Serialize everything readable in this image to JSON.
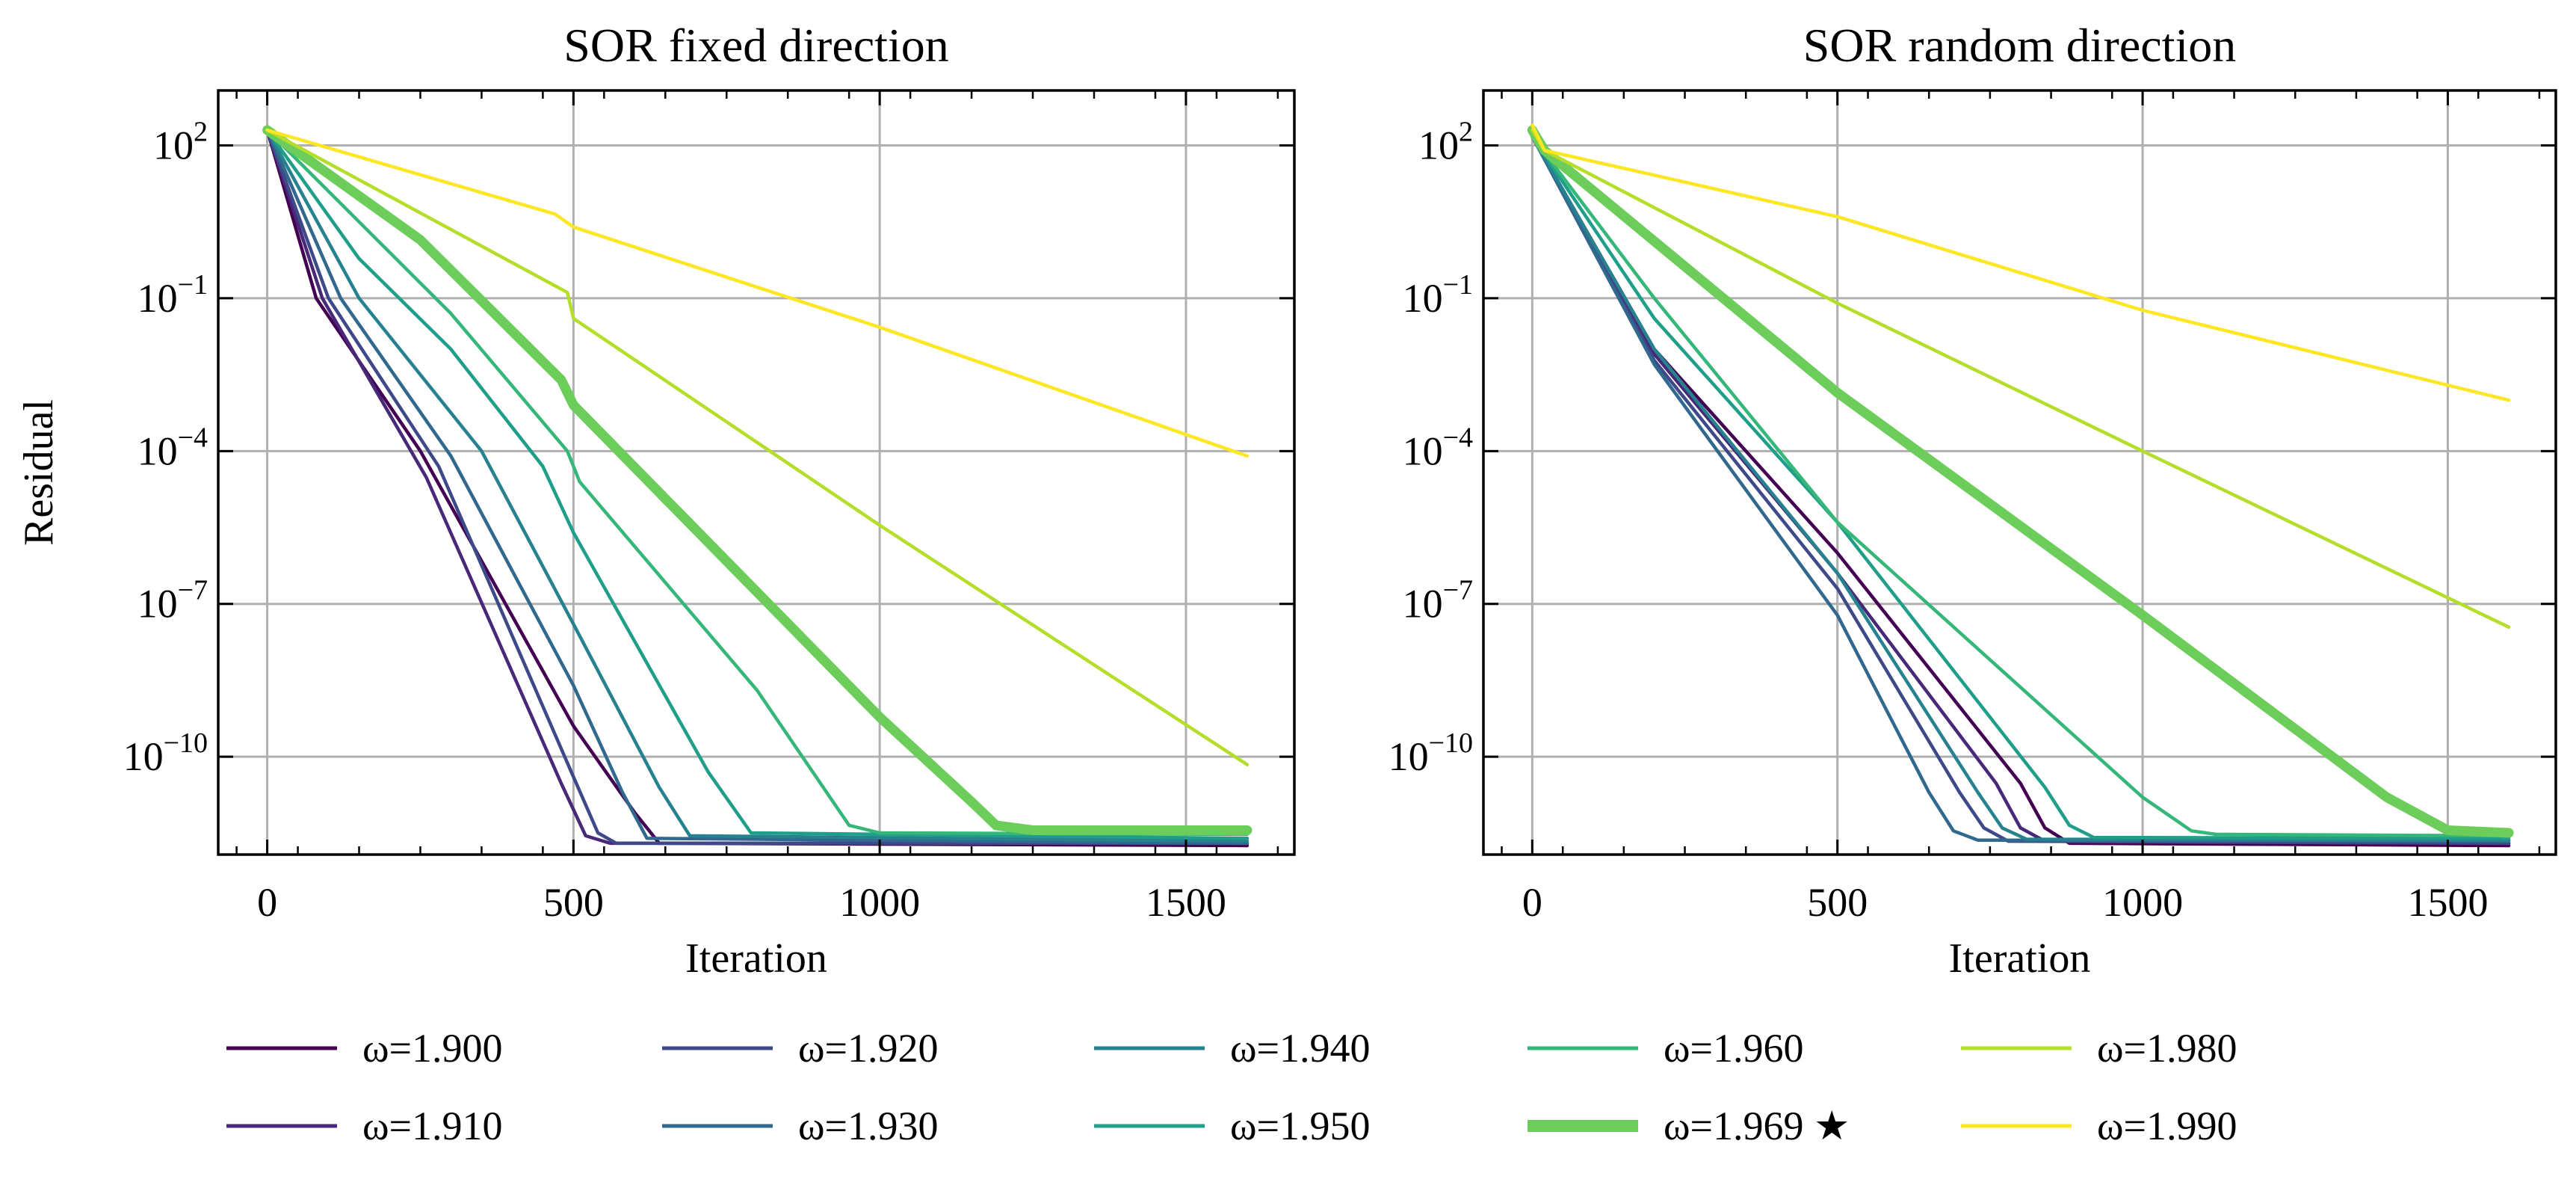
{
  "chart_data": [
    {
      "type": "line",
      "title": "SOR fixed direction",
      "xlabel": "Iteration",
      "ylabel": "Residual",
      "yscale": "log",
      "xlim": [
        -80,
        1677
      ],
      "ylim": [
        1.2e-12,
        1200.0
      ],
      "grid": true,
      "xticks": [
        0,
        500,
        1000,
        1500
      ],
      "xtick_labels": [
        "0",
        "500",
        "1000",
        "1500"
      ],
      "yticks": [
        100.0,
        0.1,
        0.0001,
        1e-07,
        1e-10
      ],
      "ytick_labels": [
        {
          "base": "10",
          "exp": "2"
        },
        {
          "base": "10",
          "exp": "−1"
        },
        {
          "base": "10",
          "exp": "−4"
        },
        {
          "base": "10",
          "exp": "−7"
        },
        {
          "base": "10",
          "exp": "−10"
        }
      ],
      "series": [
        {
          "name": "ω=1.900",
          "x": [
            0,
            80,
            250,
            500,
            600,
            640,
            1600
          ],
          "y": [
            200,
            0.1,
            0.0001,
            4e-10,
            8e-12,
            2e-12,
            1.8e-12
          ]
        },
        {
          "name": "ω=1.910",
          "x": [
            0,
            90,
            260,
            480,
            520,
            560,
            1600
          ],
          "y": [
            200,
            0.1,
            3e-05,
            3e-11,
            2.8e-12,
            2e-12,
            2e-12
          ]
        },
        {
          "name": "ω=1.920",
          "x": [
            0,
            100,
            280,
            500,
            540,
            570,
            1600
          ],
          "y": [
            200,
            0.1,
            5e-05,
            4e-11,
            3.2e-12,
            2e-12,
            2e-12
          ]
        },
        {
          "name": "ω=1.930",
          "x": [
            0,
            120,
            300,
            500,
            580,
            620,
            1600
          ],
          "y": [
            200,
            0.1,
            8e-05,
            2.5e-09,
            2e-11,
            2.5e-12,
            2e-12
          ]
        },
        {
          "name": "ω=1.940",
          "x": [
            0,
            150,
            350,
            500,
            640,
            690,
            1600
          ],
          "y": [
            200,
            0.1,
            0.0001,
            4e-08,
            2.5e-11,
            2.8e-12,
            2.2e-12
          ]
        },
        {
          "name": "ω=1.950",
          "x": [
            0,
            150,
            300,
            450,
            500,
            720,
            790,
            1600
          ],
          "y": [
            200,
            0.6,
            0.01,
            5e-05,
            2.5e-06,
            5e-11,
            3.2e-12,
            2.5e-12
          ]
        },
        {
          "name": "ω=1.960",
          "x": [
            0,
            300,
            490,
            510,
            800,
            950,
            1000,
            1600
          ],
          "y": [
            200,
            0.05,
            0.0001,
            2.5e-05,
            2e-09,
            4.5e-12,
            3.2e-12,
            3e-12
          ]
        },
        {
          "name": "ω=1.969 ★",
          "x": [
            0,
            250,
            480,
            500,
            1000,
            1150,
            1190,
            1250,
            1600
          ],
          "y": [
            200,
            1.4,
            0.0025,
            0.0008,
            6e-10,
            1.3e-11,
            4.5e-12,
            3.6e-12,
            3.6e-12
          ]
        },
        {
          "name": "ω=1.980",
          "x": [
            0,
            490,
            500,
            1000,
            1600
          ],
          "y": [
            200,
            0.13,
            0.04,
            3.5e-06,
            7e-11
          ]
        },
        {
          "name": "ω=1.990",
          "x": [
            0,
            470,
            500,
            1000,
            1600
          ],
          "y": [
            200,
            4.5,
            2.5,
            0.027,
            8e-05
          ]
        }
      ]
    },
    {
      "type": "line",
      "title": "SOR random direction",
      "xlabel": "Iteration",
      "yscale": "log",
      "xlim": [
        -80,
        1677
      ],
      "ylim": [
        1.2e-12,
        1200.0
      ],
      "grid": true,
      "xticks": [
        0,
        500,
        1000,
        1500
      ],
      "xtick_labels": [
        "0",
        "500",
        "1000",
        "1500"
      ],
      "yticks": [
        100.0,
        0.1,
        0.0001,
        1e-07,
        1e-10
      ],
      "ytick_labels": [
        {
          "base": "10",
          "exp": "2"
        },
        {
          "base": "10",
          "exp": "−1"
        },
        {
          "base": "10",
          "exp": "−4"
        },
        {
          "base": "10",
          "exp": "−7"
        },
        {
          "base": "10",
          "exp": "−10"
        }
      ],
      "series": [
        {
          "name": "ω=1.900",
          "x": [
            0,
            200,
            500,
            800,
            840,
            880,
            1600
          ],
          "y": [
            150,
            0.01,
            1e-06,
            3e-11,
            4e-12,
            2e-12,
            1.8e-12
          ]
        },
        {
          "name": "ω=1.910",
          "x": [
            0,
            200,
            500,
            760,
            800,
            840,
            1600
          ],
          "y": [
            150,
            0.008,
            4e-07,
            3e-11,
            4e-12,
            2.2e-12,
            2e-12
          ]
        },
        {
          "name": "ω=1.920",
          "x": [
            0,
            200,
            500,
            700,
            740,
            780,
            1600
          ],
          "y": [
            150,
            0.006,
            2e-07,
            2e-11,
            4e-12,
            2.2e-12,
            2e-12
          ]
        },
        {
          "name": "ω=1.930",
          "x": [
            0,
            200,
            500,
            650,
            690,
            730,
            1600
          ],
          "y": [
            150,
            0.005,
            6e-08,
            2e-11,
            3.5e-12,
            2.3e-12,
            2.2e-12
          ]
        },
        {
          "name": "ω=1.940",
          "x": [
            0,
            200,
            500,
            730,
            770,
            810,
            1600
          ],
          "y": [
            150,
            0.01,
            4e-07,
            2e-11,
            4e-12,
            2.4e-12,
            2.3e-12
          ]
        },
        {
          "name": "ω=1.950",
          "x": [
            0,
            200,
            500,
            840,
            880,
            920,
            1600
          ],
          "y": [
            150,
            0.04,
            4e-06,
            2.5e-11,
            4.5e-12,
            2.6e-12,
            2.5e-12
          ]
        },
        {
          "name": "ω=1.960",
          "x": [
            0,
            200,
            500,
            1000,
            1080,
            1120,
            1600
          ],
          "y": [
            150,
            0.1,
            4e-06,
            1.6e-11,
            3.5e-12,
            3e-12,
            2.8e-12
          ]
        },
        {
          "name": "ω=1.969 ★",
          "x": [
            0,
            20,
            500,
            1000,
            1400,
            1500,
            1600
          ],
          "y": [
            200,
            80,
            0.0014,
            6e-08,
            1.6e-11,
            3.6e-12,
            3.2e-12
          ]
        },
        {
          "name": "ω=1.980",
          "x": [
            0,
            20,
            500,
            1000,
            1600
          ],
          "y": [
            200,
            80,
            0.08,
            0.0001,
            3.5e-08
          ]
        },
        {
          "name": "ω=1.990",
          "x": [
            0,
            20,
            500,
            1000,
            1600
          ],
          "y": [
            250,
            80,
            4,
            0.058,
            0.001
          ]
        }
      ]
    }
  ],
  "legend": {
    "placement": "bottom",
    "entries": [
      {
        "label": "ω=1.900",
        "color": "#440154"
      },
      {
        "label": "ω=1.910",
        "color": "#482878"
      },
      {
        "label": "ω=1.920",
        "color": "#3e4989"
      },
      {
        "label": "ω=1.930",
        "color": "#31688e"
      },
      {
        "label": "ω=1.940",
        "color": "#26828e"
      },
      {
        "label": "ω=1.950",
        "color": "#1f9e89"
      },
      {
        "label": "ω=1.960",
        "color": "#35b779"
      },
      {
        "label": "ω=1.969 ★",
        "color": "#6ccd5a",
        "highlight": true
      },
      {
        "label": "ω=1.980",
        "color": "#b5de2b"
      },
      {
        "label": "ω=1.990",
        "color": "#fde725"
      }
    ]
  }
}
